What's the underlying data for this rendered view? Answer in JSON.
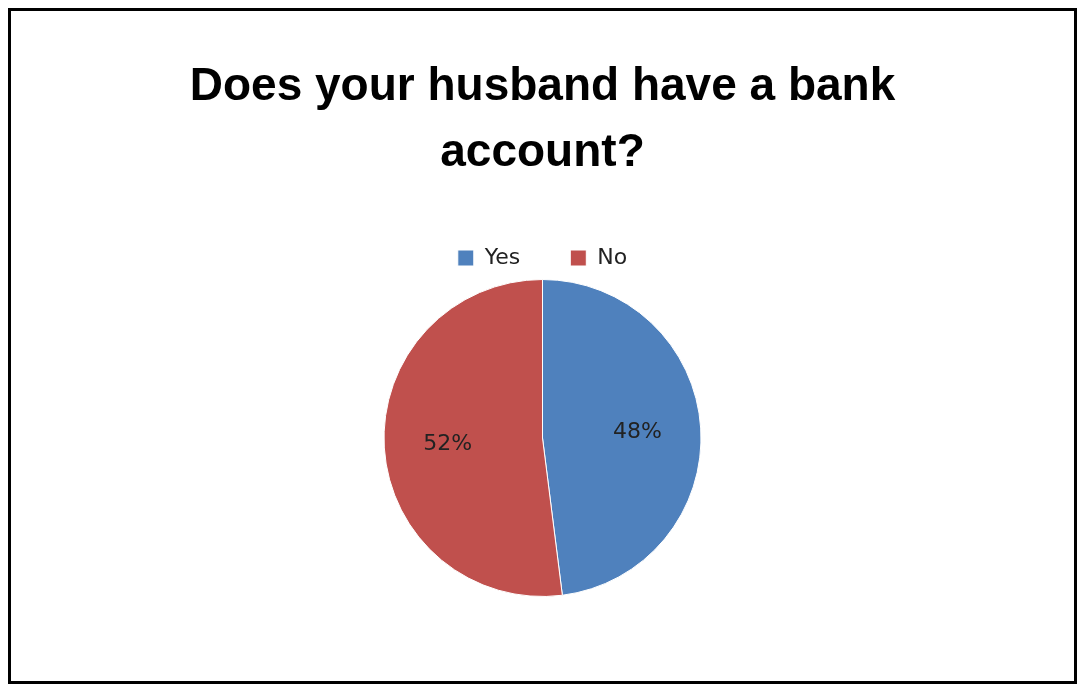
{
  "chart_data": {
    "type": "pie",
    "title": "Does your husband have a bank account?",
    "categories": [
      "Yes",
      "No"
    ],
    "values": [
      48,
      52
    ],
    "colors": [
      "#4f81bd",
      "#c0504d"
    ],
    "legend": "top",
    "value_labels": [
      "48%",
      "52%"
    ]
  }
}
